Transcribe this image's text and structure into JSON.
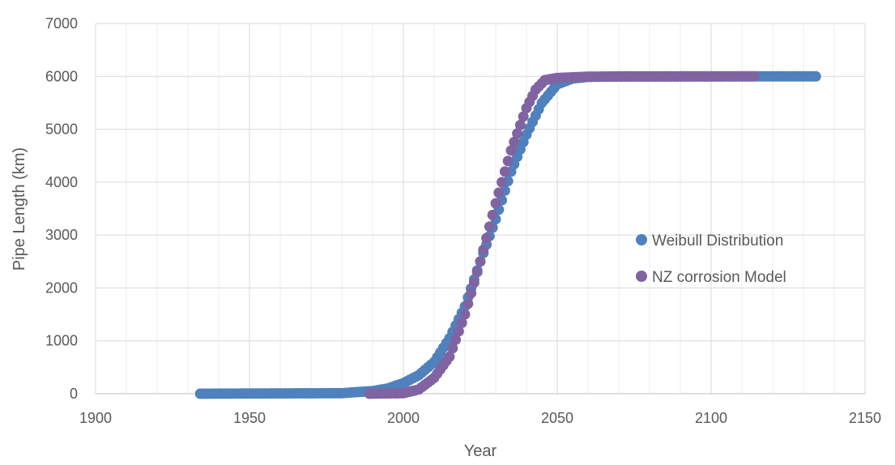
{
  "chart_data": {
    "type": "scatter",
    "xlabel": "Year",
    "ylabel": "Pipe Length (km)",
    "xlim": [
      1900,
      2150
    ],
    "ylim": [
      0,
      7000
    ],
    "x_ticks": [
      1900,
      1950,
      2000,
      2050,
      2100,
      2150
    ],
    "y_ticks": [
      0,
      1000,
      2000,
      3000,
      4000,
      5000,
      6000,
      7000
    ],
    "x_minor_step": 10,
    "grid": true,
    "legend_position": "right-center",
    "series": [
      {
        "name": "Weibull Distribution",
        "color": "#4f81bd",
        "x_range": [
          1934,
          2134
        ],
        "x_step": 1,
        "curve": {
          "x": [
            1934,
            1980,
            1990,
            1995,
            2000,
            2005,
            2010,
            2015,
            2020,
            2025,
            2030,
            2035,
            2040,
            2045,
            2050,
            2055,
            2060,
            2070,
            2134
          ],
          "y": [
            0,
            10,
            50,
            100,
            200,
            350,
            600,
            1050,
            1650,
            2500,
            3300,
            4200,
            4900,
            5500,
            5850,
            5960,
            5990,
            6000,
            6000
          ]
        }
      },
      {
        "name": "NZ corrosion Model",
        "color": "#8064a2",
        "x_range": [
          1989,
          2114
        ],
        "x_step": 1,
        "curve": {
          "x": [
            1989,
            2000,
            2005,
            2010,
            2015,
            2020,
            2025,
            2030,
            2035,
            2040,
            2043,
            2046,
            2050,
            2060,
            2114
          ],
          "y": [
            0,
            10,
            80,
            300,
            700,
            1500,
            2500,
            3600,
            4600,
            5400,
            5750,
            5930,
            5970,
            5995,
            6000
          ]
        }
      }
    ]
  }
}
